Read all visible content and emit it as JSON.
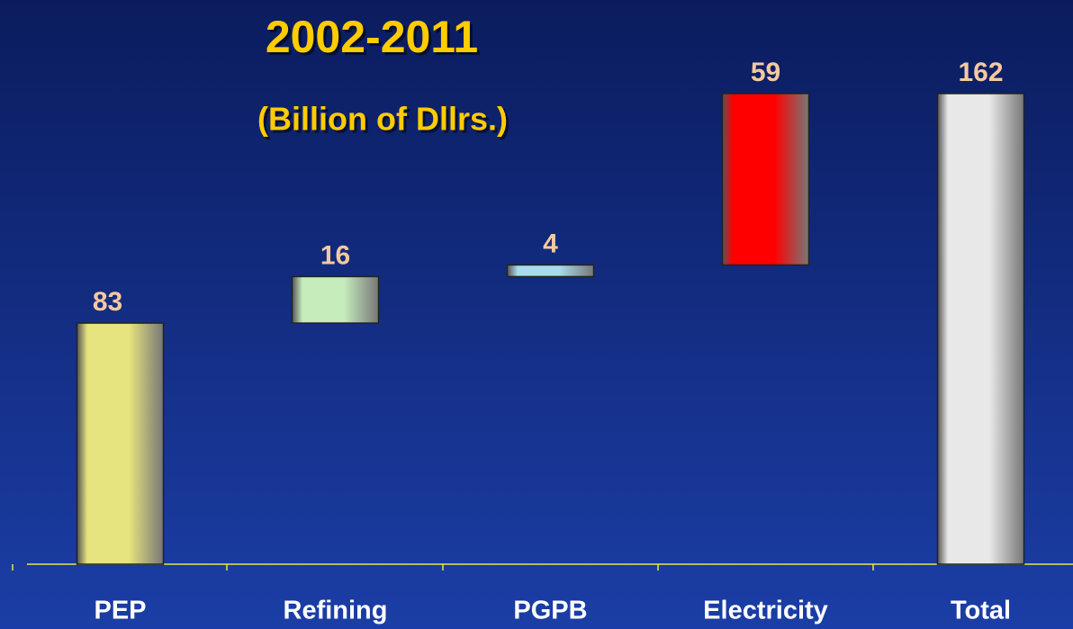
{
  "chart_data": {
    "type": "waterfall",
    "title": "2002-2011",
    "subtitle": "(Billion of Dllrs.)",
    "categories": [
      "PEP",
      "Refining",
      "PGPB",
      "Electricity",
      "Total"
    ],
    "values": [
      83,
      16,
      4,
      59,
      162
    ],
    "is_total": [
      false,
      false,
      false,
      false,
      true
    ],
    "colors": [
      "#e6e47e",
      "#c6ecbc",
      "#a8dcec",
      "#ff0000",
      "#e8e8e8"
    ],
    "ylim": [
      0,
      162
    ]
  }
}
